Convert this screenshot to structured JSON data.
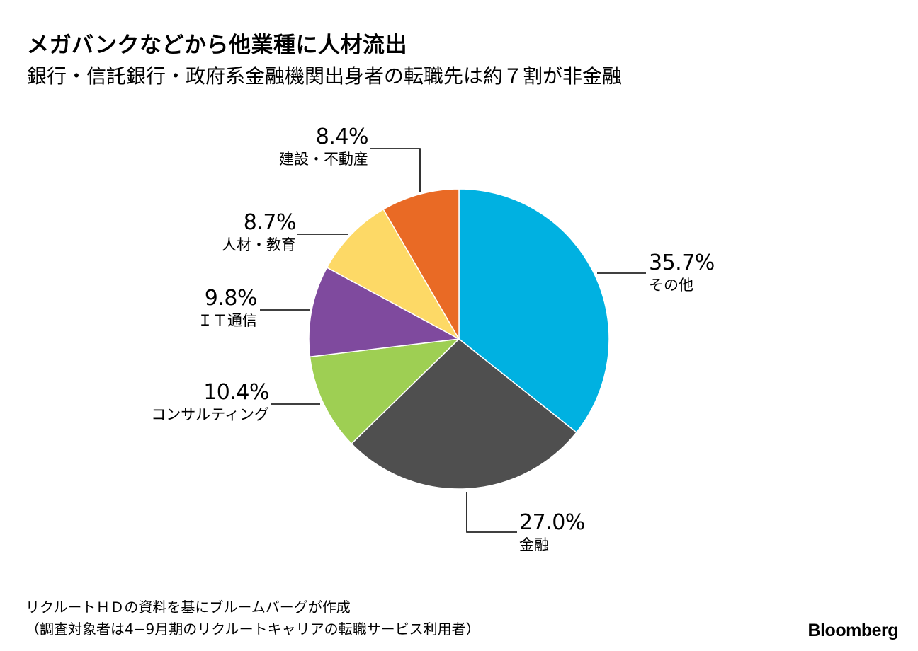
{
  "title": "メガバンクなどから他業種に人材流出",
  "subtitle": "銀行・信託銀行・政府系金融機関出身者の転職先は約７割が非金融",
  "source_lines": [
    "リクルートＨＤの資料を基にブルームバーグが作成",
    "（調査対象者は4−9月期のリクルートキャリアの転職サービス利用者）"
  ],
  "brand": "Bloomberg",
  "chart_data": {
    "type": "pie",
    "start": "12 o'clock",
    "direction": "clockwise",
    "unit": "%",
    "slices": [
      {
        "label": "その他",
        "value": 35.7,
        "value_label": "35.7%",
        "color": "#00b1e1"
      },
      {
        "label": "金融",
        "value": 27.0,
        "value_label": "27.0%",
        "color": "#4f4f4f"
      },
      {
        "label": "コンサルティング",
        "value": 10.4,
        "value_label": "10.4%",
        "color": "#9ecf53"
      },
      {
        "label": "ＩＴ通信",
        "value": 9.8,
        "value_label": "9.8%",
        "color": "#7f4a9e"
      },
      {
        "label": "人材・教育",
        "value": 8.7,
        "value_label": "8.7%",
        "color": "#fdd966"
      },
      {
        "label": "建設・不動産",
        "value": 8.4,
        "value_label": "8.4%",
        "color": "#e96a25"
      }
    ]
  }
}
